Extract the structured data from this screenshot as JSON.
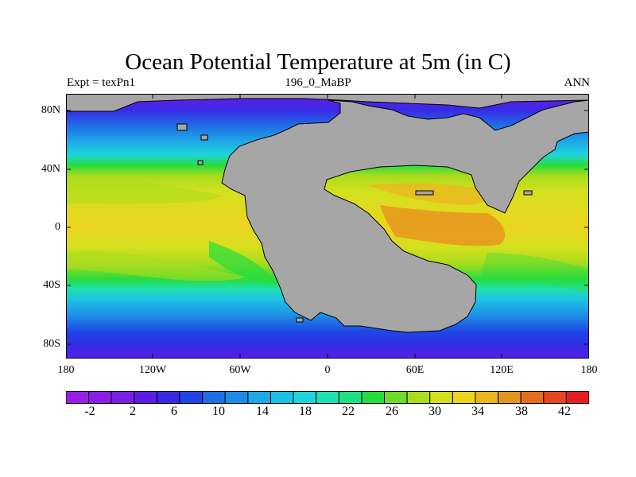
{
  "title": "Ocean Potential Temperature at 5m (in C)",
  "subtitle_left": "Expt = texPn1",
  "subtitle_center": "196_0_MaBP",
  "subtitle_right": "ANN",
  "lat_labels": [
    "80N",
    "40N",
    "0",
    "40S",
    "80S"
  ],
  "lon_labels": [
    "180",
    "120W",
    "60W",
    "0",
    "60E",
    "120E",
    "180"
  ],
  "colorbar": {
    "labels": [
      "-2",
      "2",
      "6",
      "10",
      "14",
      "18",
      "22",
      "26",
      "30",
      "34",
      "38",
      "42"
    ],
    "colors": [
      "#9a1ee6",
      "#8a1ee6",
      "#7a1ee6",
      "#5a1ee6",
      "#3a28e6",
      "#1e46e6",
      "#1e6ee6",
      "#1e8ce6",
      "#1ea8e6",
      "#1ec0e6",
      "#1ed4dc",
      "#1ee0b4",
      "#1ee082",
      "#28dc3c",
      "#6edc28",
      "#aadc1e",
      "#d4e01e",
      "#ecd41e",
      "#ecb41e",
      "#e6961e",
      "#e66e1e",
      "#e6461e",
      "#e61e1e"
    ]
  },
  "land_color": "#a6a6a6"
}
